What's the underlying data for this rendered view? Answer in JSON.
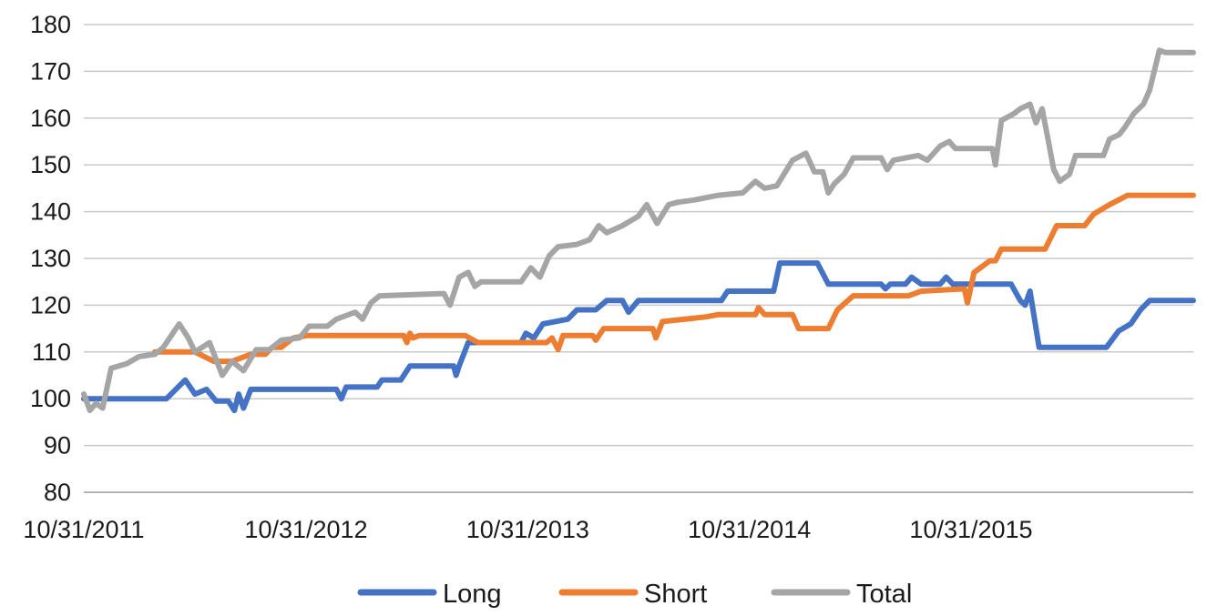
{
  "chart_data": {
    "type": "line",
    "title": "",
    "xlabel": "",
    "ylabel": "",
    "ylim": [
      80,
      180
    ],
    "yticks": [
      80,
      90,
      100,
      110,
      120,
      130,
      140,
      150,
      160,
      170,
      180
    ],
    "xlim": [
      "2011-10-31",
      "2016-10-31"
    ],
    "xticks": [
      "10/31/2011",
      "10/31/2012",
      "10/31/2013",
      "10/31/2014",
      "10/31/2015"
    ],
    "grid": true,
    "legend": "bottom",
    "series": [
      {
        "name": "Long",
        "color": "#4472c4",
        "points": [
          [
            "2011-10-31",
            100
          ],
          [
            "2012-03-15",
            100
          ],
          [
            "2012-04-15",
            104
          ],
          [
            "2012-05-01",
            101
          ],
          [
            "2012-05-20",
            102
          ],
          [
            "2012-06-05",
            99.5
          ],
          [
            "2012-06-25",
            99.5
          ],
          [
            "2012-07-05",
            97.5
          ],
          [
            "2012-07-12",
            101
          ],
          [
            "2012-07-20",
            98
          ],
          [
            "2012-08-01",
            102
          ],
          [
            "2012-12-20",
            102
          ],
          [
            "2012-12-28",
            100
          ],
          [
            "2013-01-05",
            102.5
          ],
          [
            "2013-02-25",
            102.5
          ],
          [
            "2013-03-05",
            104
          ],
          [
            "2013-04-05",
            104
          ],
          [
            "2013-04-20",
            107
          ],
          [
            "2013-07-01",
            107
          ],
          [
            "2013-07-05",
            105
          ],
          [
            "2013-07-10",
            107
          ],
          [
            "2013-07-25",
            112
          ],
          [
            "2013-08-05",
            112
          ],
          [
            "2013-10-20",
            112
          ],
          [
            "2013-10-28",
            114
          ],
          [
            "2013-11-10",
            113
          ],
          [
            "2013-11-25",
            116
          ],
          [
            "2014-01-05",
            117
          ],
          [
            "2014-01-20",
            119
          ],
          [
            "2014-02-20",
            119
          ],
          [
            "2014-03-10",
            121
          ],
          [
            "2014-04-05",
            121
          ],
          [
            "2014-04-15",
            118.5
          ],
          [
            "2014-05-01",
            121
          ],
          [
            "2014-09-15",
            121
          ],
          [
            "2014-09-25",
            123
          ],
          [
            "2014-12-10",
            123
          ],
          [
            "2014-12-20",
            129
          ],
          [
            "2015-02-20",
            129
          ],
          [
            "2015-03-10",
            124.5
          ],
          [
            "2015-06-05",
            124.5
          ],
          [
            "2015-06-12",
            123.5
          ],
          [
            "2015-06-20",
            124.5
          ],
          [
            "2015-07-15",
            124.5
          ],
          [
            "2015-07-25",
            126
          ],
          [
            "2015-08-10",
            124.5
          ],
          [
            "2015-09-10",
            124.5
          ],
          [
            "2015-09-20",
            126
          ],
          [
            "2015-10-01",
            124.5
          ],
          [
            "2016-01-05",
            124.5
          ],
          [
            "2016-01-20",
            121
          ],
          [
            "2016-01-28",
            120
          ],
          [
            "2016-02-05",
            123
          ],
          [
            "2016-02-20",
            111
          ],
          [
            "2016-06-10",
            111
          ],
          [
            "2016-06-30",
            114.5
          ],
          [
            "2016-07-20",
            116
          ],
          [
            "2016-08-05",
            119
          ],
          [
            "2016-08-20",
            121
          ],
          [
            "2016-10-31",
            121
          ]
        ]
      },
      {
        "name": "Short",
        "color": "#ed7d31",
        "points": [
          [
            "2012-02-25",
            110
          ],
          [
            "2012-05-01",
            110
          ],
          [
            "2012-06-01",
            108
          ],
          [
            "2012-07-01",
            108
          ],
          [
            "2012-08-01",
            109.5
          ],
          [
            "2012-08-25",
            109.5
          ],
          [
            "2012-09-05",
            111
          ],
          [
            "2012-09-20",
            111
          ],
          [
            "2012-10-10",
            113
          ],
          [
            "2012-11-01",
            113.5
          ],
          [
            "2013-04-10",
            113.5
          ],
          [
            "2013-04-15",
            112
          ],
          [
            "2013-04-20",
            114
          ],
          [
            "2013-04-25",
            113
          ],
          [
            "2013-05-05",
            113.5
          ],
          [
            "2013-07-20",
            113.5
          ],
          [
            "2013-08-10",
            112
          ],
          [
            "2013-12-01",
            112
          ],
          [
            "2013-12-10",
            113
          ],
          [
            "2013-12-20",
            110.5
          ],
          [
            "2013-12-28",
            113.5
          ],
          [
            "2014-02-15",
            113.5
          ],
          [
            "2014-02-20",
            112.5
          ],
          [
            "2014-03-05",
            115
          ],
          [
            "2014-05-25",
            115
          ],
          [
            "2014-05-30",
            113
          ],
          [
            "2014-06-10",
            116.5
          ],
          [
            "2014-08-20",
            117.5
          ],
          [
            "2014-09-10",
            118
          ],
          [
            "2014-11-10",
            118
          ],
          [
            "2014-11-15",
            119.5
          ],
          [
            "2014-11-25",
            118
          ],
          [
            "2015-01-10",
            118
          ],
          [
            "2015-01-20",
            115
          ],
          [
            "2015-03-10",
            115
          ],
          [
            "2015-03-25",
            119
          ],
          [
            "2015-04-20",
            122
          ],
          [
            "2015-07-20",
            122
          ],
          [
            "2015-08-10",
            123
          ],
          [
            "2015-10-20",
            123.5
          ],
          [
            "2015-10-25",
            120.5
          ],
          [
            "2015-11-05",
            127
          ],
          [
            "2015-12-01",
            129.5
          ],
          [
            "2015-12-10",
            129.5
          ],
          [
            "2015-12-20",
            132
          ],
          [
            "2016-03-01",
            132
          ],
          [
            "2016-03-20",
            137
          ],
          [
            "2016-05-05",
            137
          ],
          [
            "2016-05-20",
            139.5
          ],
          [
            "2016-06-15",
            141.5
          ],
          [
            "2016-07-15",
            143.5
          ],
          [
            "2016-10-31",
            143.5
          ]
        ]
      },
      {
        "name": "Total",
        "color": "#a5a5a5",
        "points": [
          [
            "2011-10-31",
            101
          ],
          [
            "2011-11-10",
            97.5
          ],
          [
            "2011-11-20",
            99
          ],
          [
            "2011-12-01",
            98
          ],
          [
            "2011-12-15",
            106.5
          ],
          [
            "2012-01-10",
            107.5
          ],
          [
            "2012-01-30",
            109
          ],
          [
            "2012-02-25",
            109.5
          ],
          [
            "2012-03-10",
            111
          ],
          [
            "2012-04-05",
            116
          ],
          [
            "2012-04-20",
            113
          ],
          [
            "2012-05-01",
            110
          ],
          [
            "2012-05-25",
            112
          ],
          [
            "2012-06-15",
            105
          ],
          [
            "2012-07-01",
            108
          ],
          [
            "2012-07-20",
            106
          ],
          [
            "2012-08-10",
            110.5
          ],
          [
            "2012-09-01",
            110.5
          ],
          [
            "2012-09-20",
            112.5
          ],
          [
            "2012-10-20",
            113
          ],
          [
            "2012-11-05",
            115.5
          ],
          [
            "2012-12-05",
            115.5
          ],
          [
            "2012-12-20",
            117
          ],
          [
            "2013-01-20",
            118.5
          ],
          [
            "2013-02-01",
            117
          ],
          [
            "2013-02-15",
            120.5
          ],
          [
            "2013-03-01",
            122
          ],
          [
            "2013-06-15",
            122.5
          ],
          [
            "2013-06-25",
            120
          ],
          [
            "2013-07-10",
            126
          ],
          [
            "2013-07-25",
            127
          ],
          [
            "2013-08-05",
            124
          ],
          [
            "2013-08-15",
            125
          ],
          [
            "2013-10-20",
            125
          ],
          [
            "2013-11-05",
            128
          ],
          [
            "2013-11-20",
            126
          ],
          [
            "2013-12-05",
            130.5
          ],
          [
            "2013-12-20",
            132.5
          ],
          [
            "2014-01-20",
            133
          ],
          [
            "2014-02-10",
            134
          ],
          [
            "2014-02-25",
            137
          ],
          [
            "2014-03-10",
            135.5
          ],
          [
            "2014-04-05",
            137
          ],
          [
            "2014-05-01",
            139
          ],
          [
            "2014-05-15",
            141.5
          ],
          [
            "2014-06-01",
            137.5
          ],
          [
            "2014-06-20",
            141.5
          ],
          [
            "2014-07-05",
            142
          ],
          [
            "2014-08-01",
            142.5
          ],
          [
            "2014-09-10",
            143.5
          ],
          [
            "2014-10-20",
            144
          ],
          [
            "2014-11-10",
            146.5
          ],
          [
            "2014-11-25",
            145
          ],
          [
            "2014-12-15",
            145.5
          ],
          [
            "2015-01-10",
            151
          ],
          [
            "2015-02-01",
            152.5
          ],
          [
            "2015-02-15",
            148.5
          ],
          [
            "2015-03-01",
            148.5
          ],
          [
            "2015-03-10",
            144
          ],
          [
            "2015-03-20",
            146
          ],
          [
            "2015-04-05",
            148
          ],
          [
            "2015-04-20",
            151.5
          ],
          [
            "2015-06-05",
            151.5
          ],
          [
            "2015-06-15",
            149
          ],
          [
            "2015-06-25",
            151
          ],
          [
            "2015-08-05",
            152
          ],
          [
            "2015-08-20",
            151
          ],
          [
            "2015-09-10",
            154
          ],
          [
            "2015-09-25",
            155
          ],
          [
            "2015-10-05",
            153.5
          ],
          [
            "2015-12-05",
            153.5
          ],
          [
            "2015-12-10",
            150
          ],
          [
            "2015-12-20",
            159.5
          ],
          [
            "2016-01-10",
            161
          ],
          [
            "2016-01-20",
            162
          ],
          [
            "2016-02-05",
            163
          ],
          [
            "2016-02-15",
            159
          ],
          [
            "2016-02-25",
            162
          ],
          [
            "2016-03-05",
            156
          ],
          [
            "2016-03-15",
            149
          ],
          [
            "2016-03-25",
            146.5
          ],
          [
            "2016-04-10",
            148
          ],
          [
            "2016-04-20",
            152
          ],
          [
            "2016-06-05",
            152
          ],
          [
            "2016-06-15",
            155.5
          ],
          [
            "2016-07-01",
            156.5
          ],
          [
            "2016-07-10",
            158
          ],
          [
            "2016-07-25",
            161
          ],
          [
            "2016-08-10",
            163
          ],
          [
            "2016-08-20",
            166
          ],
          [
            "2016-09-05",
            174.5
          ],
          [
            "2016-09-15",
            174
          ],
          [
            "2016-10-31",
            174
          ]
        ]
      }
    ]
  }
}
